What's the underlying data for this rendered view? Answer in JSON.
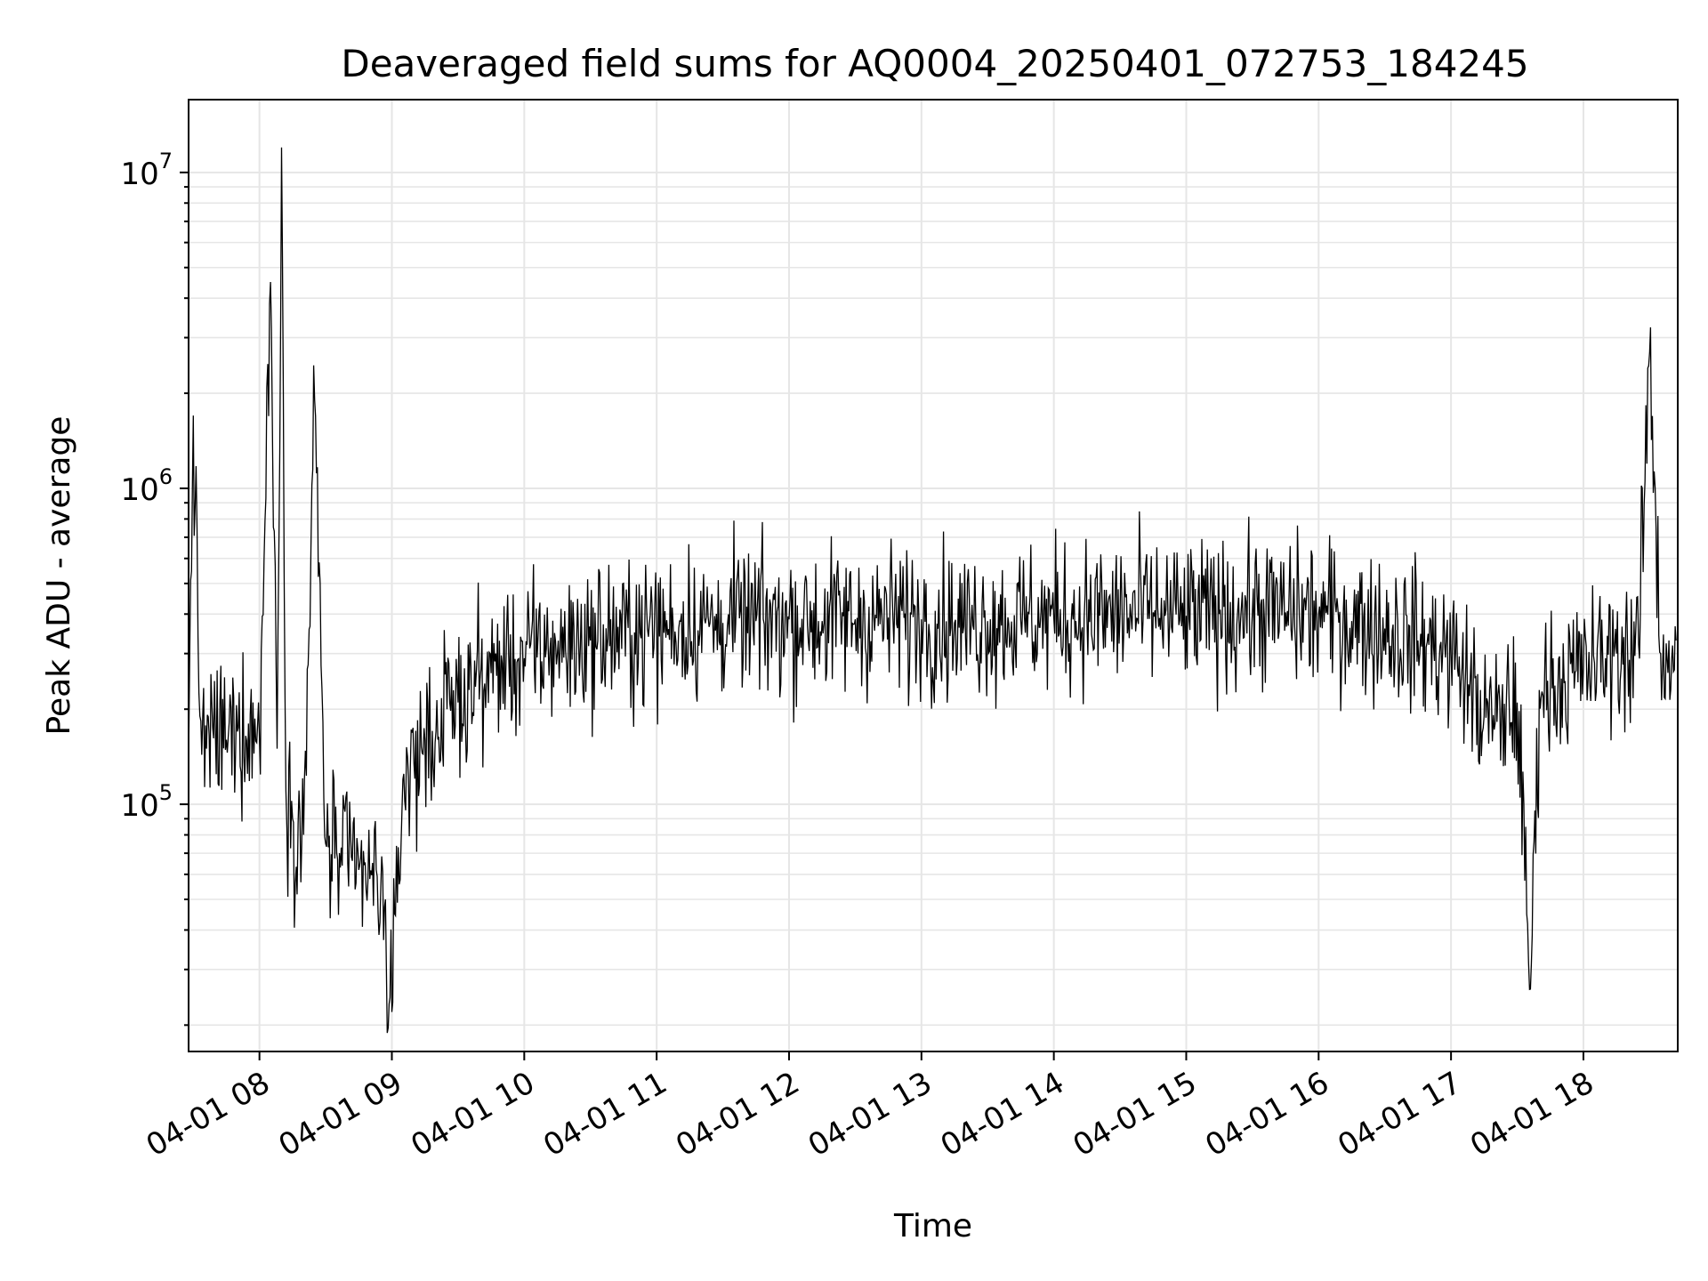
{
  "chart_data": {
    "type": "line",
    "title": "Deaveraged field sums for AQ0004_20250401_072753_184245",
    "xlabel": "Time",
    "ylabel": "Peak ADU - average",
    "yscale": "log",
    "xlim": [
      "2025-04-01 07:27:53",
      "2025-04-01 18:42:45"
    ],
    "ylim": [
      16500,
      17000000
    ],
    "grid": true,
    "line_color": "#000000",
    "x_ticks": [
      "04-01 08",
      "04-01 09",
      "04-01 10",
      "04-01 11",
      "04-01 12",
      "04-01 13",
      "04-01 14",
      "04-01 15",
      "04-01 16",
      "04-01 17",
      "04-01 18"
    ],
    "y_ticks": [
      {
        "value": 100000,
        "base": "10",
        "exp": "5"
      },
      {
        "value": 1000000,
        "base": "10",
        "exp": "6"
      },
      {
        "value": 10000000,
        "base": "10",
        "exp": "7"
      }
    ],
    "series": [
      {
        "x": [
          "07:28",
          "07:30",
          "07:33",
          "07:36",
          "07:40",
          "07:45",
          "07:50",
          "07:55",
          "08:00",
          "08:05",
          "08:08",
          "08:10",
          "08:12",
          "08:15",
          "08:20",
          "08:25",
          "08:30",
          "08:35",
          "08:40",
          "08:45",
          "08:50",
          "08:55",
          "09:00",
          "09:05",
          "09:10",
          "09:15",
          "09:20",
          "09:25",
          "09:30",
          "09:35",
          "09:40",
          "09:45",
          "09:50",
          "10:00",
          "10:10",
          "10:20",
          "10:30",
          "10:40",
          "10:50",
          "11:00",
          "11:15",
          "11:30",
          "11:45",
          "12:00",
          "12:15",
          "12:30",
          "12:45",
          "13:00",
          "13:15",
          "13:30",
          "13:45",
          "14:00",
          "14:15",
          "14:30",
          "14:45",
          "15:00",
          "15:15",
          "15:30",
          "15:45",
          "16:00",
          "16:15",
          "16:30",
          "16:45",
          "17:00",
          "17:05",
          "17:10",
          "17:15",
          "17:20",
          "17:25",
          "17:30",
          "17:36",
          "17:40",
          "17:45",
          "17:50",
          "17:55",
          "18:00",
          "18:05",
          "18:10",
          "18:15",
          "18:20",
          "18:25",
          "18:30",
          "18:35",
          "18:40",
          "18:42"
        ],
        "y": [
          160000,
          1700000,
          190000,
          150000,
          170000,
          160000,
          170000,
          180000,
          160000,
          4500000,
          150000,
          12000000,
          110000,
          90000,
          80000,
          1900000,
          75000,
          70000,
          65000,
          62000,
          58000,
          55000,
          22000,
          120000,
          135000,
          160000,
          170000,
          200000,
          210000,
          230000,
          250000,
          260000,
          280000,
          290000,
          310000,
          320000,
          330000,
          340000,
          350000,
          360000,
          370000,
          375000,
          380000,
          385000,
          380000,
          385000,
          390000,
          385000,
          375000,
          380000,
          385000,
          390000,
          395000,
          400000,
          405000,
          395000,
          400000,
          410000,
          405000,
          400000,
          380000,
          360000,
          330000,
          300000,
          270000,
          220000,
          190000,
          180000,
          200000,
          210000,
          26000,
          230000,
          240000,
          250000,
          260000,
          270000,
          280000,
          290000,
          300000,
          310000,
          320000,
          2700000,
          300000,
          290000,
          330000
        ]
      }
    ]
  }
}
